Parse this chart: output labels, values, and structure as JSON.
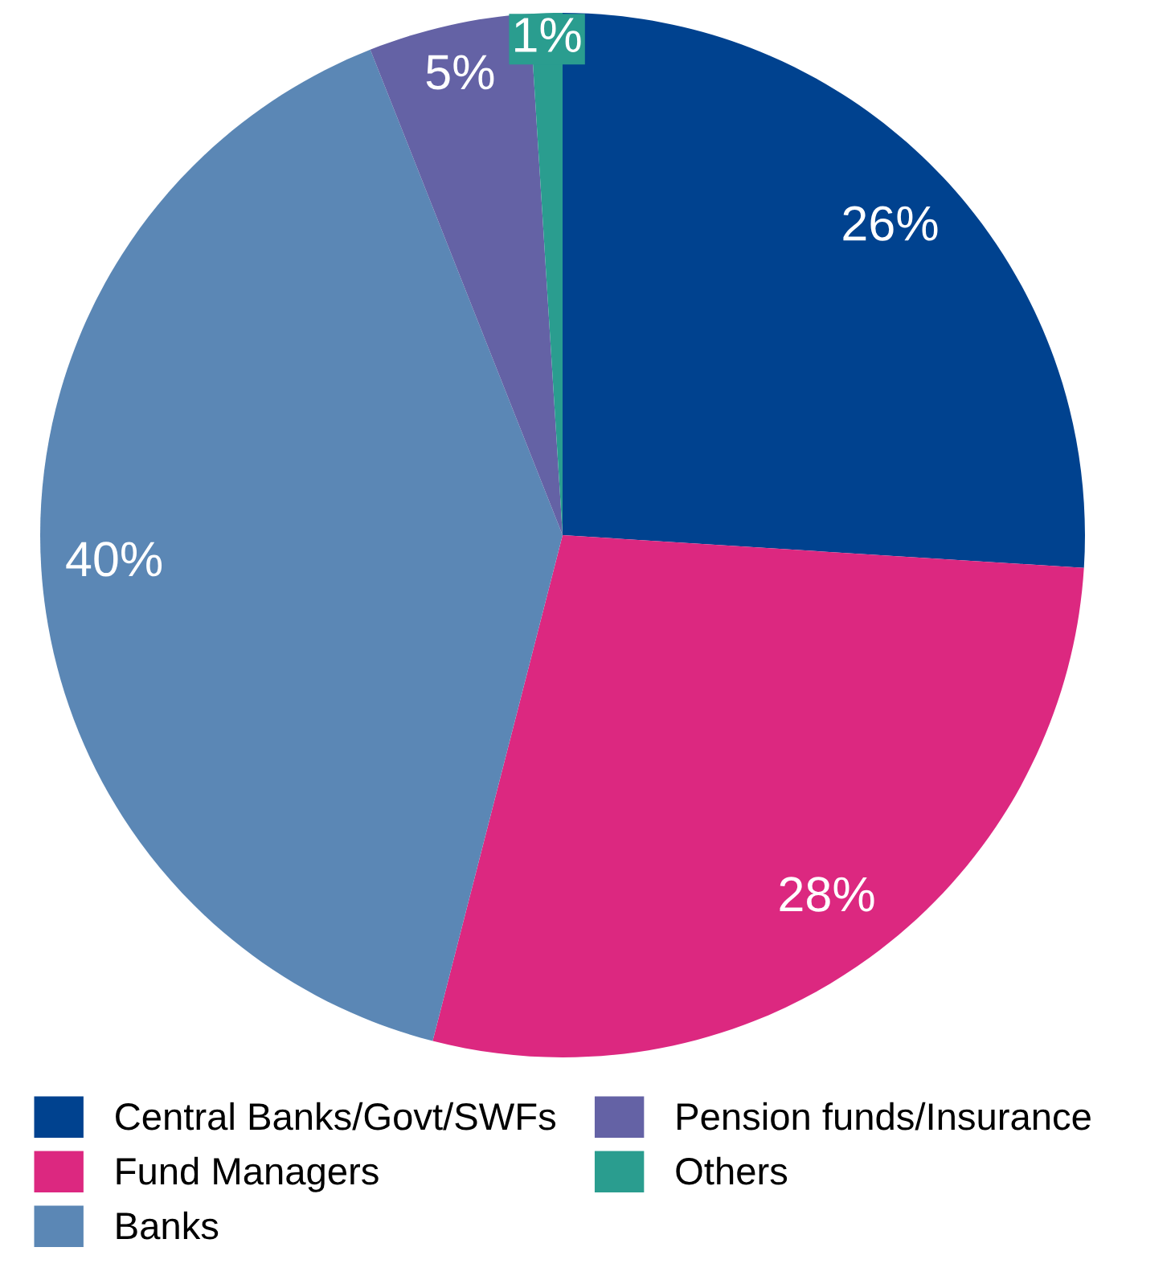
{
  "chart_data": {
    "type": "pie",
    "categories": [
      "Central Banks/Govt/SWFs",
      "Fund Managers",
      "Banks",
      "Pension funds/Insurance",
      "Others"
    ],
    "values": [
      26,
      28,
      40,
      5,
      1
    ],
    "value_labels": [
      "26%",
      "28%",
      "40%",
      "5%",
      "1%"
    ],
    "colors": [
      "#00428f",
      "#dc2880",
      "#5b87b5",
      "#6462a5",
      "#2a9d8f"
    ],
    "legend": "bottom"
  }
}
